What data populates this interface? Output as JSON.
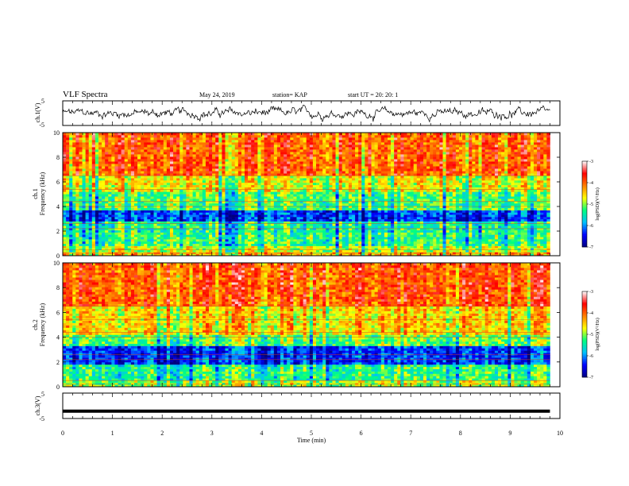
{
  "header": {
    "title": "VLF Spectra",
    "date": "May 24, 2019",
    "station": "station= KAP",
    "start": "start UT = 20: 20: 1"
  },
  "colorbar": {
    "label": "log(PSD)(V²/Hz)",
    "ticks": [
      "-3",
      "-4",
      "-5",
      "-6",
      "-7"
    ],
    "colors": [
      "#000080",
      "#0000ff",
      "#00bfff",
      "#00ff80",
      "#ffff00",
      "#ff8000",
      "#ff0000",
      "#ffffff"
    ]
  },
  "chart_data": [
    {
      "type": "line",
      "name": "ch1-time-series",
      "ylabel": "ch.1(V)",
      "ylim": [
        -5,
        5
      ],
      "yticks": [
        "5",
        "-5"
      ],
      "xlim": [
        0,
        10
      ],
      "description_values": {
        "x_min": [
          0,
          9.8
        ],
        "approx_center": 0,
        "approx_range": [
          -3,
          3
        ]
      }
    },
    {
      "type": "heatmap",
      "name": "ch1-spectrogram",
      "ylabel": "ch.1 Frequency (kHz)",
      "ylim": [
        0,
        10
      ],
      "yticks": [
        "0",
        "2",
        "4",
        "6",
        "8",
        "10"
      ],
      "xlim": [
        0,
        9.8
      ],
      "zlim": [
        -7,
        -3
      ],
      "bands": [
        {
          "f": [
            0,
            0.3
          ],
          "level": -4.3
        },
        {
          "f": [
            0.3,
            0.8
          ],
          "level": -4.8
        },
        {
          "f": [
            0.8,
            1.9
          ],
          "level": -5.2
        },
        {
          "f": [
            1.9,
            2.8
          ],
          "level": -5.3
        },
        {
          "f": [
            2.8,
            3.7
          ],
          "level": -6.2
        },
        {
          "f": [
            3.7,
            5.2
          ],
          "level": -5.1
        },
        {
          "f": [
            5.2,
            6.5
          ],
          "level": -4.6
        },
        {
          "f": [
            6.5,
            10
          ],
          "level": -3.9
        }
      ]
    },
    {
      "type": "heatmap",
      "name": "ch2-spectrogram",
      "ylabel": "ch.2 Frequency (kHz)",
      "ylim": [
        0,
        10
      ],
      "yticks": [
        "0",
        "2",
        "4",
        "6",
        "8",
        "10"
      ],
      "xlim": [
        0,
        9.8
      ],
      "zlim": [
        -7,
        -3
      ],
      "bands": [
        {
          "f": [
            0,
            0.5
          ],
          "level": -4.8
        },
        {
          "f": [
            0.5,
            1.8
          ],
          "level": -5.2
        },
        {
          "f": [
            1.8,
            3.3
          ],
          "level": -6.2
        },
        {
          "f": [
            3.3,
            4.2
          ],
          "level": -5.0
        },
        {
          "f": [
            4.2,
            6.5
          ],
          "level": -4.4
        },
        {
          "f": [
            6.5,
            10
          ],
          "level": -3.8
        }
      ]
    },
    {
      "type": "line",
      "name": "ch3-time-series",
      "ylabel": "ch.3(V)",
      "ylim": [
        -5,
        5
      ],
      "yticks": [
        "5",
        "-5"
      ],
      "xlim": [
        0,
        10
      ],
      "xticks": [
        "0",
        "1",
        "2",
        "3",
        "4",
        "5",
        "6",
        "7",
        "8",
        "9",
        "10"
      ],
      "xlabel": "Time (min)",
      "x": [
        0,
        9.8
      ],
      "y": [
        -2.1,
        -2.1
      ]
    }
  ]
}
